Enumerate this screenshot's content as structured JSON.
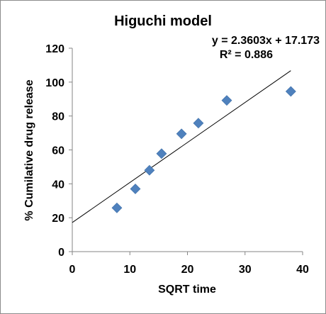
{
  "chart_data": {
    "type": "scatter",
    "title": "Higuchi model",
    "xlabel": "SQRT time",
    "ylabel": "% Cumilative drug release",
    "xlim": [
      0,
      40
    ],
    "ylim": [
      0,
      120
    ],
    "xticks": [
      0,
      10,
      20,
      30,
      40
    ],
    "yticks": [
      0,
      20,
      40,
      60,
      80,
      100,
      120
    ],
    "grid": false,
    "legend": "none",
    "marker_color": "#4f81bd",
    "marker": "diamond",
    "points": [
      {
        "x": 7.75,
        "y": 25.8
      },
      {
        "x": 10.95,
        "y": 37.0
      },
      {
        "x": 13.4,
        "y": 48.0
      },
      {
        "x": 15.5,
        "y": 57.8
      },
      {
        "x": 18.97,
        "y": 69.5
      },
      {
        "x": 21.9,
        "y": 75.8
      },
      {
        "x": 26.83,
        "y": 89.2
      },
      {
        "x": 37.95,
        "y": 94.5
      }
    ],
    "trendline": {
      "type": "linear",
      "slope": 2.3603,
      "intercept": 17.173,
      "x_range": [
        0,
        37.95
      ],
      "equation_text": "y = 2.3603x + 17.173",
      "r2_text": "R² = 0.886"
    }
  }
}
